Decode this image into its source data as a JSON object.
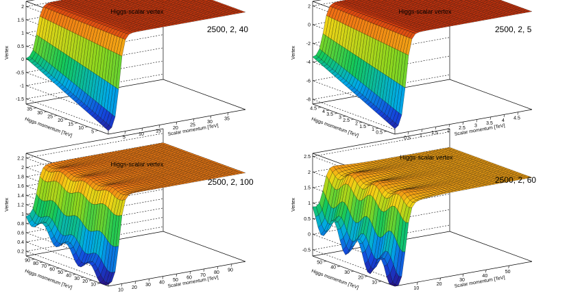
{
  "chart_data": [
    {
      "type": "surface",
      "title": "Higgs-scalar vertex",
      "label": "2500, 2, 40",
      "xlabel": "Scalar momentum [TeV]",
      "ylabel": "Higgs momentum [TeV]",
      "zlabel": "Vertex",
      "x_ticks": [
        "5",
        "10",
        "15",
        "20",
        "25",
        "30",
        "35"
      ],
      "y_ticks": [
        "5",
        "10",
        "15",
        "20",
        "25",
        "30",
        "35"
      ],
      "z_ticks": [
        "-1.5",
        "-1",
        "-0.5",
        "0",
        "0.5",
        "1",
        "1.5",
        "2"
      ],
      "zlim": [
        -1.7,
        2.2
      ],
      "plateau": 2.0,
      "minimum": -1.6
    },
    {
      "type": "surface",
      "title": "Higgs-scalar vertex",
      "label": "2500, 2, 5",
      "xlabel": "Scalar momentum [TeV]",
      "ylabel": "Higgs momentum [TeV]",
      "zlabel": "Vertex",
      "x_ticks": [
        "0.5",
        "1",
        "1.5",
        "2",
        "2.5",
        "3",
        "3.5",
        "4",
        "4.5"
      ],
      "y_ticks": [
        "0.5",
        "1",
        "1.5",
        "2",
        "2.5",
        "3",
        "3.5",
        "4",
        "4.5"
      ],
      "z_ticks": [
        "-8",
        "-6",
        "-4",
        "-2",
        "0",
        "2"
      ],
      "zlim": [
        -8.5,
        2.5
      ],
      "plateau": 2.0,
      "minimum": -8.0
    },
    {
      "type": "surface",
      "title": "Higgs-scalar vertex",
      "label": "2500, 2, 100",
      "xlabel": "Scalar momentum [TeV]",
      "ylabel": "Higgs momentum [TeV]",
      "zlabel": "Vertex",
      "x_ticks": [
        "10",
        "20",
        "30",
        "40",
        "50",
        "60",
        "70",
        "80",
        "90"
      ],
      "y_ticks": [
        "10",
        "20",
        "30",
        "40",
        "50",
        "60",
        "70",
        "80",
        "90"
      ],
      "z_ticks": [
        "0.2",
        "0.4",
        "0.6",
        "0.8",
        "1",
        "1.2",
        "1.4",
        "1.6",
        "1.8",
        "2",
        "2.2"
      ],
      "zlim": [
        0.1,
        2.3
      ],
      "plateau": 2.0,
      "minimum": 0.1
    },
    {
      "type": "surface",
      "title": "Higgs-scalar vertex",
      "label": "2500, 2, 60",
      "xlabel": "Scalar momentum [TeV]",
      "ylabel": "Higgs momentum [TeV]",
      "zlabel": "Vertex",
      "x_ticks": [
        "10",
        "20",
        "30",
        "40",
        "50"
      ],
      "y_ticks": [
        "10",
        "20",
        "30",
        "40",
        "50"
      ],
      "z_ticks": [
        "-0.5",
        "0",
        "0.5",
        "1",
        "1.5",
        "2",
        "2.5"
      ],
      "zlim": [
        -0.7,
        2.6
      ],
      "plateau": 2.0,
      "minimum": -0.6
    }
  ]
}
